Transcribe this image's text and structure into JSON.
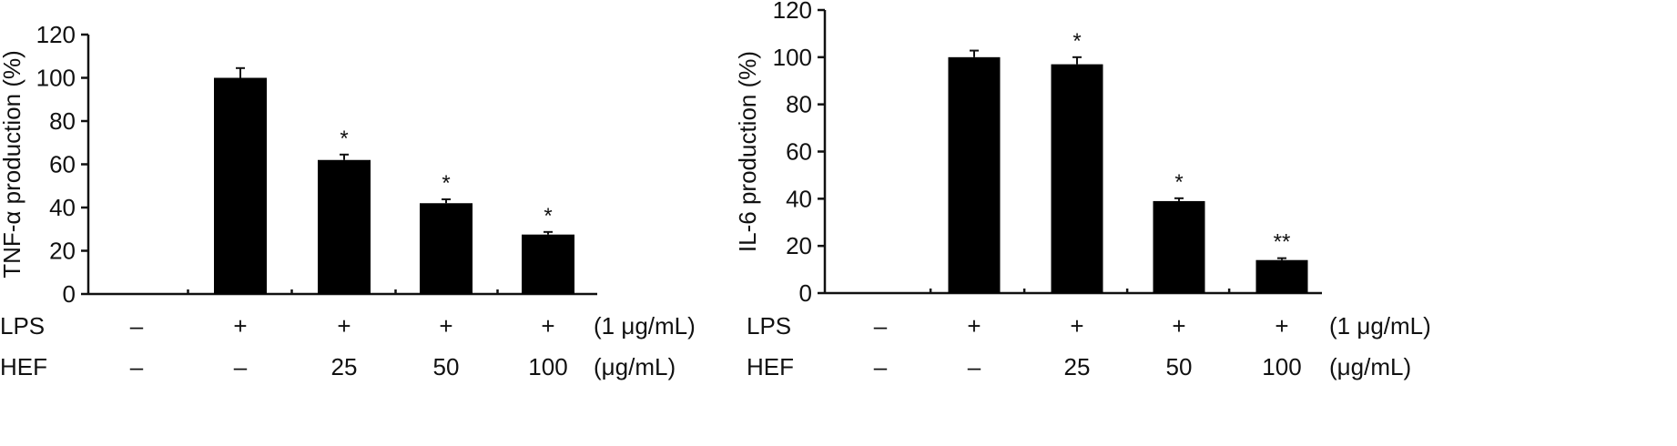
{
  "chart_data": [
    {
      "type": "bar",
      "ylabel": "TNF-α production (%)",
      "ylim": [
        0,
        120
      ],
      "yticks": [
        "0",
        "20",
        "40",
        "60",
        "80",
        "100",
        "120"
      ],
      "values": [
        0,
        100,
        62,
        42,
        27.5
      ],
      "errors": [
        0,
        4.5,
        2.5,
        1.8,
        1.2
      ],
      "significance": [
        "",
        "",
        "*",
        "*",
        "*"
      ],
      "conditions": [
        {
          "label": "LPS",
          "values": [
            "–",
            "+",
            "+",
            "+",
            "+"
          ],
          "unit": "(1 μg/mL)"
        },
        {
          "label": "HEF",
          "values": [
            "–",
            "–",
            "25",
            "50",
            "100"
          ],
          "unit": "(μg/mL)"
        }
      ],
      "bar_color": "#000000"
    },
    {
      "type": "bar",
      "ylabel": "IL-6 production (%)",
      "ylim": [
        0,
        120
      ],
      "yticks": [
        "0",
        "20",
        "40",
        "60",
        "80",
        "100",
        "120"
      ],
      "values": [
        0,
        100,
        97,
        39,
        14
      ],
      "errors": [
        0,
        2.8,
        3.0,
        1.2,
        0.8
      ],
      "significance": [
        "",
        "",
        "*",
        "*",
        "**"
      ],
      "conditions": [
        {
          "label": "LPS",
          "values": [
            "–",
            "+",
            "+",
            "+",
            "+"
          ],
          "unit": "(1 μg/mL)"
        },
        {
          "label": "HEF",
          "values": [
            "–",
            "–",
            "25",
            "50",
            "100"
          ],
          "unit": "(μg/mL)"
        }
      ],
      "bar_color": "#000000"
    }
  ]
}
